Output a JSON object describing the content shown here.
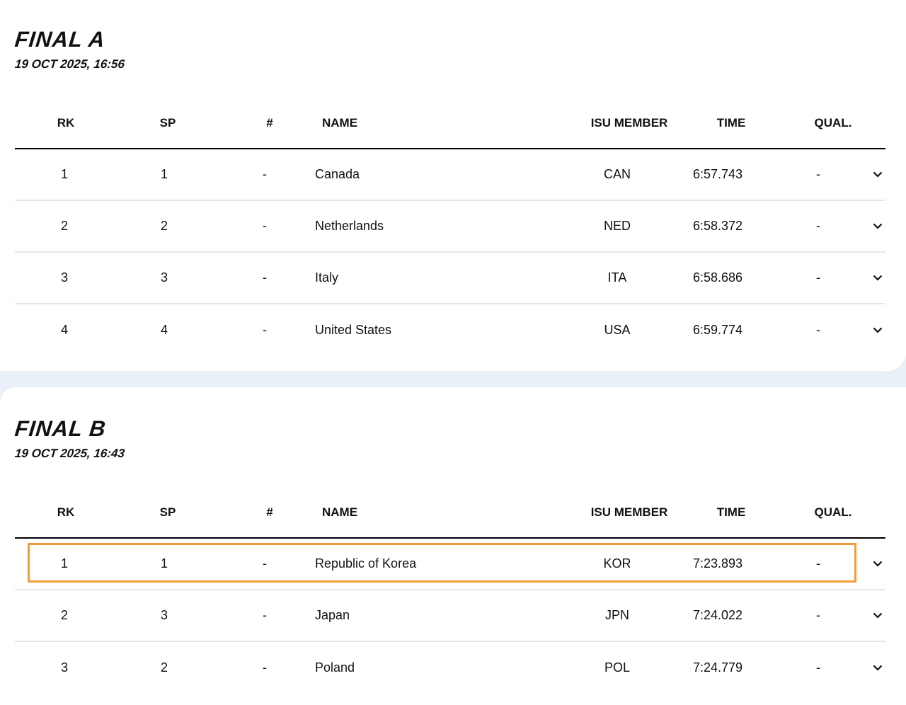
{
  "columns": {
    "rk": "RK",
    "sp": "SP",
    "num": "#",
    "name": "NAME",
    "member": "ISU MEMBER",
    "time": "TIME",
    "qual": "QUAL."
  },
  "highlight_color": "#f39a3b",
  "finals": [
    {
      "title": "FINAL A",
      "date": "19 OCT 2025, 16:56",
      "rows": [
        {
          "rk": "1",
          "sp": "1",
          "num": "-",
          "name": "Canada",
          "member": "CAN",
          "time": "6:57.743",
          "qual": "-"
        },
        {
          "rk": "2",
          "sp": "2",
          "num": "-",
          "name": "Netherlands",
          "member": "NED",
          "time": "6:58.372",
          "qual": "-"
        },
        {
          "rk": "3",
          "sp": "3",
          "num": "-",
          "name": "Italy",
          "member": "ITA",
          "time": "6:58.686",
          "qual": "-"
        },
        {
          "rk": "4",
          "sp": "4",
          "num": "-",
          "name": "United States",
          "member": "USA",
          "time": "6:59.774",
          "qual": "-"
        }
      ]
    },
    {
      "title": "FINAL B",
      "date": "19 OCT 2025, 16:43",
      "rows": [
        {
          "rk": "1",
          "sp": "1",
          "num": "-",
          "name": "Republic of Korea",
          "member": "KOR",
          "time": "7:23.893",
          "qual": "-",
          "highlighted": true
        },
        {
          "rk": "2",
          "sp": "3",
          "num": "-",
          "name": "Japan",
          "member": "JPN",
          "time": "7:24.022",
          "qual": "-"
        },
        {
          "rk": "3",
          "sp": "2",
          "num": "-",
          "name": "Poland",
          "member": "POL",
          "time": "7:24.779",
          "qual": "-"
        }
      ]
    }
  ]
}
